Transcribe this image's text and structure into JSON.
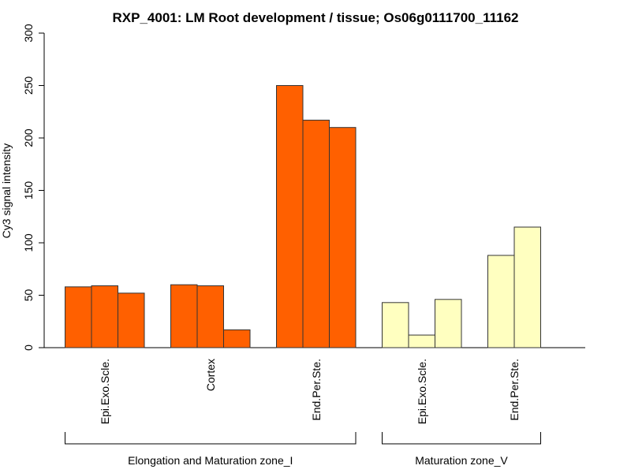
{
  "chart_data": {
    "type": "bar",
    "title": "RXP_4001: LM Root development / tissue; Os06g0111700_11162",
    "ylabel": "Cy3 signal intensity",
    "xlabel": "",
    "ylim": [
      0,
      300
    ],
    "yticks": [
      "0",
      "50",
      "100",
      "150",
      "200",
      "250",
      "300"
    ],
    "grid": false,
    "categories": [
      {
        "label": "Epi.Exo.Scle.",
        "group": 0,
        "values": [
          58,
          59,
          52
        ]
      },
      {
        "label": "Cortex",
        "group": 0,
        "values": [
          60,
          59,
          17
        ]
      },
      {
        "label": "End.Per.Ste.",
        "group": 0,
        "values": [
          250,
          217,
          210
        ]
      },
      {
        "label": "Epi.Exo.Scle.",
        "group": 1,
        "values": [
          43,
          12,
          46
        ]
      },
      {
        "label": "End.Per.Ste.",
        "group": 1,
        "values": [
          88,
          115
        ]
      }
    ],
    "groups": [
      {
        "label": "Elongation and Maturation zone_I",
        "color": "#ff6000"
      },
      {
        "label": "Maturation zone_V",
        "color": "#ffffc0"
      }
    ]
  }
}
